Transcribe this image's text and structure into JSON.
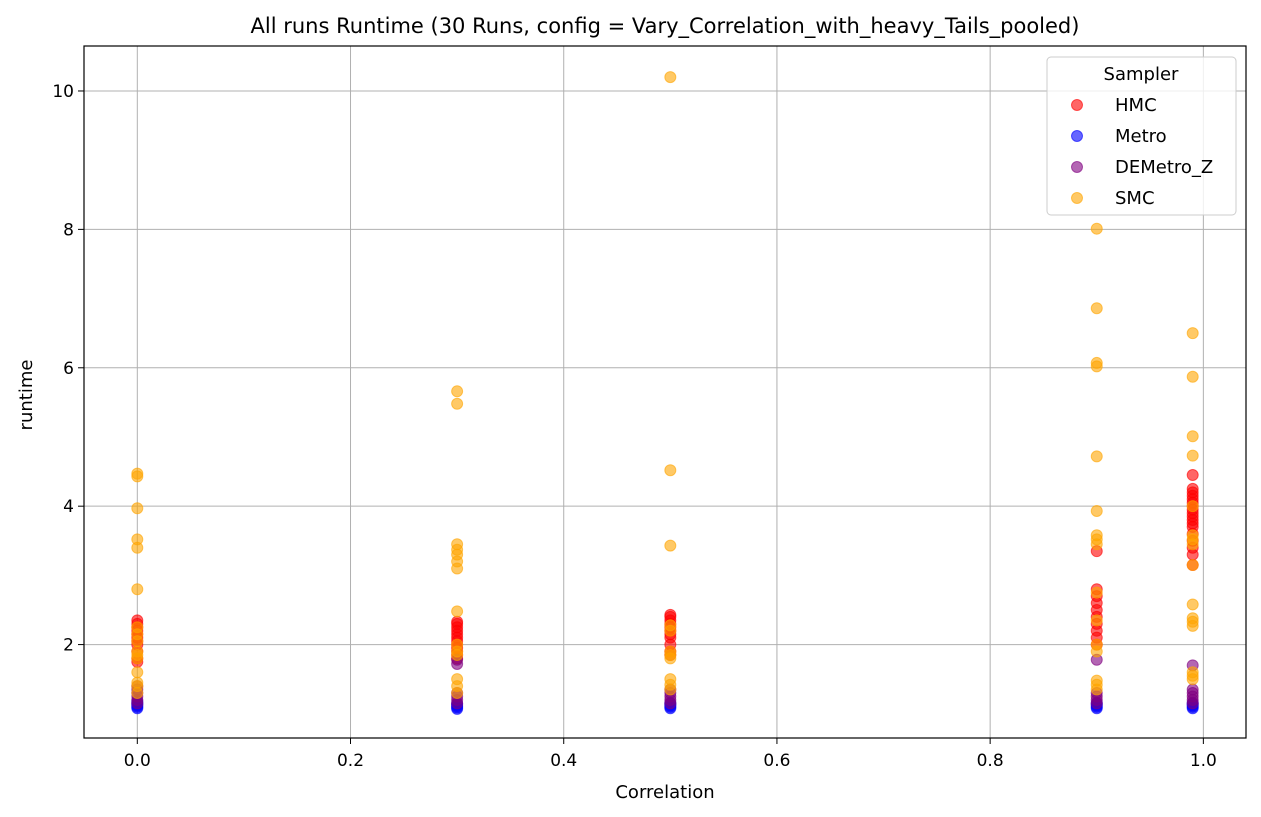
{
  "chart_data": {
    "type": "scatter",
    "title": "All runs Runtime (30 Runs, config = Vary_Correlation_with_heavy_Tails_pooled)",
    "xlabel": "Correlation",
    "ylabel": "runtime",
    "xlim": [
      -0.05,
      1.04
    ],
    "ylim": [
      0.65,
      10.65
    ],
    "x_ticks": [
      0.0,
      0.2,
      0.4,
      0.6,
      0.8,
      1.0
    ],
    "x_tick_labels": [
      "0.0",
      "0.2",
      "0.4",
      "0.6",
      "0.8",
      "1.0"
    ],
    "y_ticks": [
      2,
      4,
      6,
      8,
      10
    ],
    "y_tick_labels": [
      "2",
      "4",
      "6",
      "8",
      "10"
    ],
    "grid": true,
    "legend": {
      "title": "Sampler",
      "placement": "top-right"
    },
    "series": [
      {
        "name": "HMC",
        "color": "#ff0000",
        "points": [
          [
            0.0,
            1.75
          ],
          [
            0.0,
            1.8
          ],
          [
            0.0,
            1.9
          ],
          [
            0.0,
            2.0
          ],
          [
            0.0,
            2.05
          ],
          [
            0.0,
            2.1
          ],
          [
            0.0,
            2.15
          ],
          [
            0.0,
            2.2
          ],
          [
            0.0,
            2.25
          ],
          [
            0.0,
            2.3
          ],
          [
            0.0,
            2.35
          ],
          [
            0.3,
            1.8
          ],
          [
            0.3,
            1.85
          ],
          [
            0.3,
            1.9
          ],
          [
            0.3,
            1.95
          ],
          [
            0.3,
            2.0
          ],
          [
            0.3,
            2.05
          ],
          [
            0.3,
            2.1
          ],
          [
            0.3,
            2.15
          ],
          [
            0.3,
            2.2
          ],
          [
            0.3,
            2.25
          ],
          [
            0.3,
            2.3
          ],
          [
            0.3,
            2.33
          ],
          [
            0.5,
            1.85
          ],
          [
            0.5,
            1.9
          ],
          [
            0.5,
            2.0
          ],
          [
            0.5,
            2.1
          ],
          [
            0.5,
            2.15
          ],
          [
            0.5,
            2.2
          ],
          [
            0.5,
            2.25
          ],
          [
            0.5,
            2.3
          ],
          [
            0.5,
            2.35
          ],
          [
            0.5,
            2.4
          ],
          [
            0.5,
            2.43
          ],
          [
            0.9,
            2.0
          ],
          [
            0.9,
            2.1
          ],
          [
            0.9,
            2.2
          ],
          [
            0.9,
            2.3
          ],
          [
            0.9,
            2.4
          ],
          [
            0.9,
            2.5
          ],
          [
            0.9,
            2.6
          ],
          [
            0.9,
            2.7
          ],
          [
            0.9,
            2.8
          ],
          [
            0.9,
            3.35
          ],
          [
            0.99,
            3.15
          ],
          [
            0.99,
            3.3
          ],
          [
            0.99,
            3.4
          ],
          [
            0.99,
            3.5
          ],
          [
            0.99,
            3.6
          ],
          [
            0.99,
            3.7
          ],
          [
            0.99,
            3.75
          ],
          [
            0.99,
            3.8
          ],
          [
            0.99,
            3.85
          ],
          [
            0.99,
            3.9
          ],
          [
            0.99,
            3.95
          ],
          [
            0.99,
            4.0
          ],
          [
            0.99,
            4.05
          ],
          [
            0.99,
            4.1
          ],
          [
            0.99,
            4.15
          ],
          [
            0.99,
            4.2
          ],
          [
            0.99,
            4.25
          ],
          [
            0.99,
            4.45
          ]
        ]
      },
      {
        "name": "Metro",
        "color": "#0000ff",
        "points": [
          [
            0.0,
            1.08
          ],
          [
            0.0,
            1.1
          ],
          [
            0.0,
            1.12
          ],
          [
            0.0,
            1.14
          ],
          [
            0.0,
            1.16
          ],
          [
            0.0,
            1.18
          ],
          [
            0.3,
            1.07
          ],
          [
            0.3,
            1.09
          ],
          [
            0.3,
            1.11
          ],
          [
            0.3,
            1.13
          ],
          [
            0.3,
            1.15
          ],
          [
            0.5,
            1.08
          ],
          [
            0.5,
            1.1
          ],
          [
            0.5,
            1.12
          ],
          [
            0.5,
            1.14
          ],
          [
            0.5,
            1.16
          ],
          [
            0.9,
            1.08
          ],
          [
            0.9,
            1.1
          ],
          [
            0.9,
            1.12
          ],
          [
            0.9,
            1.14
          ],
          [
            0.9,
            1.16
          ],
          [
            0.99,
            1.08
          ],
          [
            0.99,
            1.1
          ],
          [
            0.99,
            1.12
          ],
          [
            0.99,
            1.14
          ],
          [
            0.99,
            1.16
          ]
        ]
      },
      {
        "name": "DEMetro_Z",
        "color": "#800080",
        "points": [
          [
            0.0,
            1.15
          ],
          [
            0.0,
            1.2
          ],
          [
            0.0,
            1.25
          ],
          [
            0.0,
            1.3
          ],
          [
            0.0,
            1.35
          ],
          [
            0.0,
            1.4
          ],
          [
            0.3,
            1.15
          ],
          [
            0.3,
            1.2
          ],
          [
            0.3,
            1.25
          ],
          [
            0.3,
            1.3
          ],
          [
            0.3,
            1.72
          ],
          [
            0.3,
            1.78
          ],
          [
            0.5,
            1.15
          ],
          [
            0.5,
            1.2
          ],
          [
            0.5,
            1.25
          ],
          [
            0.5,
            1.3
          ],
          [
            0.5,
            1.35
          ],
          [
            0.9,
            1.15
          ],
          [
            0.9,
            1.2
          ],
          [
            0.9,
            1.25
          ],
          [
            0.9,
            1.3
          ],
          [
            0.9,
            1.78
          ],
          [
            0.99,
            1.15
          ],
          [
            0.99,
            1.2
          ],
          [
            0.99,
            1.25
          ],
          [
            0.99,
            1.3
          ],
          [
            0.99,
            1.35
          ],
          [
            0.99,
            1.7
          ]
        ]
      },
      {
        "name": "SMC",
        "color": "#ffa500",
        "points": [
          [
            0.0,
            1.3
          ],
          [
            0.0,
            1.4
          ],
          [
            0.0,
            1.45
          ],
          [
            0.0,
            1.6
          ],
          [
            0.0,
            1.8
          ],
          [
            0.0,
            1.85
          ],
          [
            0.0,
            1.9
          ],
          [
            0.0,
            2.05
          ],
          [
            0.0,
            2.15
          ],
          [
            0.0,
            2.25
          ],
          [
            0.0,
            2.8
          ],
          [
            0.0,
            3.4
          ],
          [
            0.0,
            3.52
          ],
          [
            0.0,
            3.97
          ],
          [
            0.0,
            4.43
          ],
          [
            0.0,
            4.47
          ],
          [
            0.3,
            1.3
          ],
          [
            0.3,
            1.4
          ],
          [
            0.3,
            1.5
          ],
          [
            0.3,
            1.85
          ],
          [
            0.3,
            1.9
          ],
          [
            0.3,
            2.0
          ],
          [
            0.3,
            2.48
          ],
          [
            0.3,
            3.1
          ],
          [
            0.3,
            3.2
          ],
          [
            0.3,
            3.3
          ],
          [
            0.3,
            3.37
          ],
          [
            0.3,
            3.45
          ],
          [
            0.3,
            5.48
          ],
          [
            0.3,
            5.66
          ],
          [
            0.5,
            1.35
          ],
          [
            0.5,
            1.42
          ],
          [
            0.5,
            1.5
          ],
          [
            0.5,
            1.8
          ],
          [
            0.5,
            1.85
          ],
          [
            0.5,
            1.9
          ],
          [
            0.5,
            2.2
          ],
          [
            0.5,
            2.28
          ],
          [
            0.5,
            3.43
          ],
          [
            0.5,
            4.52
          ],
          [
            0.5,
            10.2
          ],
          [
            0.9,
            1.35
          ],
          [
            0.9,
            1.42
          ],
          [
            0.9,
            1.48
          ],
          [
            0.9,
            1.9
          ],
          [
            0.9,
            2.0
          ],
          [
            0.9,
            2.35
          ],
          [
            0.9,
            2.75
          ],
          [
            0.9,
            3.45
          ],
          [
            0.9,
            3.52
          ],
          [
            0.9,
            3.58
          ],
          [
            0.9,
            3.93
          ],
          [
            0.9,
            4.72
          ],
          [
            0.9,
            6.02
          ],
          [
            0.9,
            6.07
          ],
          [
            0.9,
            6.86
          ],
          [
            0.9,
            8.01
          ],
          [
            0.99,
            1.5
          ],
          [
            0.99,
            1.55
          ],
          [
            0.99,
            1.6
          ],
          [
            0.99,
            2.27
          ],
          [
            0.99,
            2.33
          ],
          [
            0.99,
            2.38
          ],
          [
            0.99,
            2.58
          ],
          [
            0.99,
            3.15
          ],
          [
            0.99,
            3.45
          ],
          [
            0.99,
            3.52
          ],
          [
            0.99,
            3.58
          ],
          [
            0.99,
            4.0
          ],
          [
            0.99,
            4.73
          ],
          [
            0.99,
            5.01
          ],
          [
            0.99,
            5.87
          ],
          [
            0.99,
            6.5
          ]
        ]
      }
    ]
  }
}
